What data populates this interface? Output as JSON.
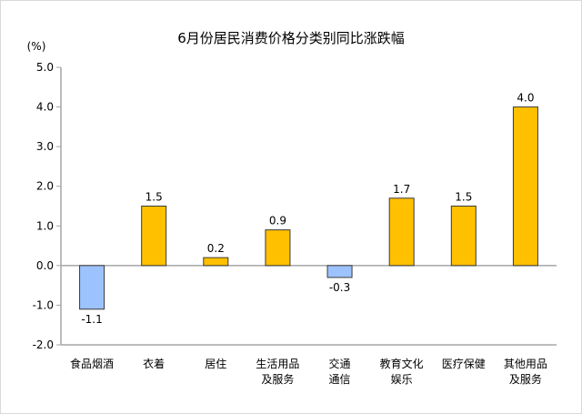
{
  "chart_data": {
    "type": "bar",
    "title": "6月份居民消费价格分类别同比涨跌幅",
    "ylabel": "(%)",
    "xlabel": "",
    "ylim": [
      -2.0,
      5.0
    ],
    "yticks": [
      "5.0",
      "4.0",
      "3.0",
      "2.0",
      "1.0",
      "0.0",
      "-1.0",
      "-2.0"
    ],
    "grid": false,
    "categories": [
      [
        "食品烟酒"
      ],
      [
        "衣着"
      ],
      [
        "居住"
      ],
      [
        "生活用品",
        "及服务"
      ],
      [
        "交通",
        "通信"
      ],
      [
        "教育文化",
        "娱乐"
      ],
      [
        "医疗保健"
      ],
      [
        "其他用品",
        "及服务"
      ]
    ],
    "values": [
      -1.1,
      1.5,
      0.2,
      0.9,
      -0.3,
      1.7,
      1.5,
      4.0
    ],
    "data_labels": [
      "-1.1",
      "1.5",
      "0.2",
      "0.9",
      "-0.3",
      "1.7",
      "1.5",
      "4.0"
    ],
    "colors": {
      "positive": "#FFC000",
      "negative": "#9DC3FF",
      "bar_border": "#3a3a3a",
      "axis": "#a6a6a6"
    }
  }
}
